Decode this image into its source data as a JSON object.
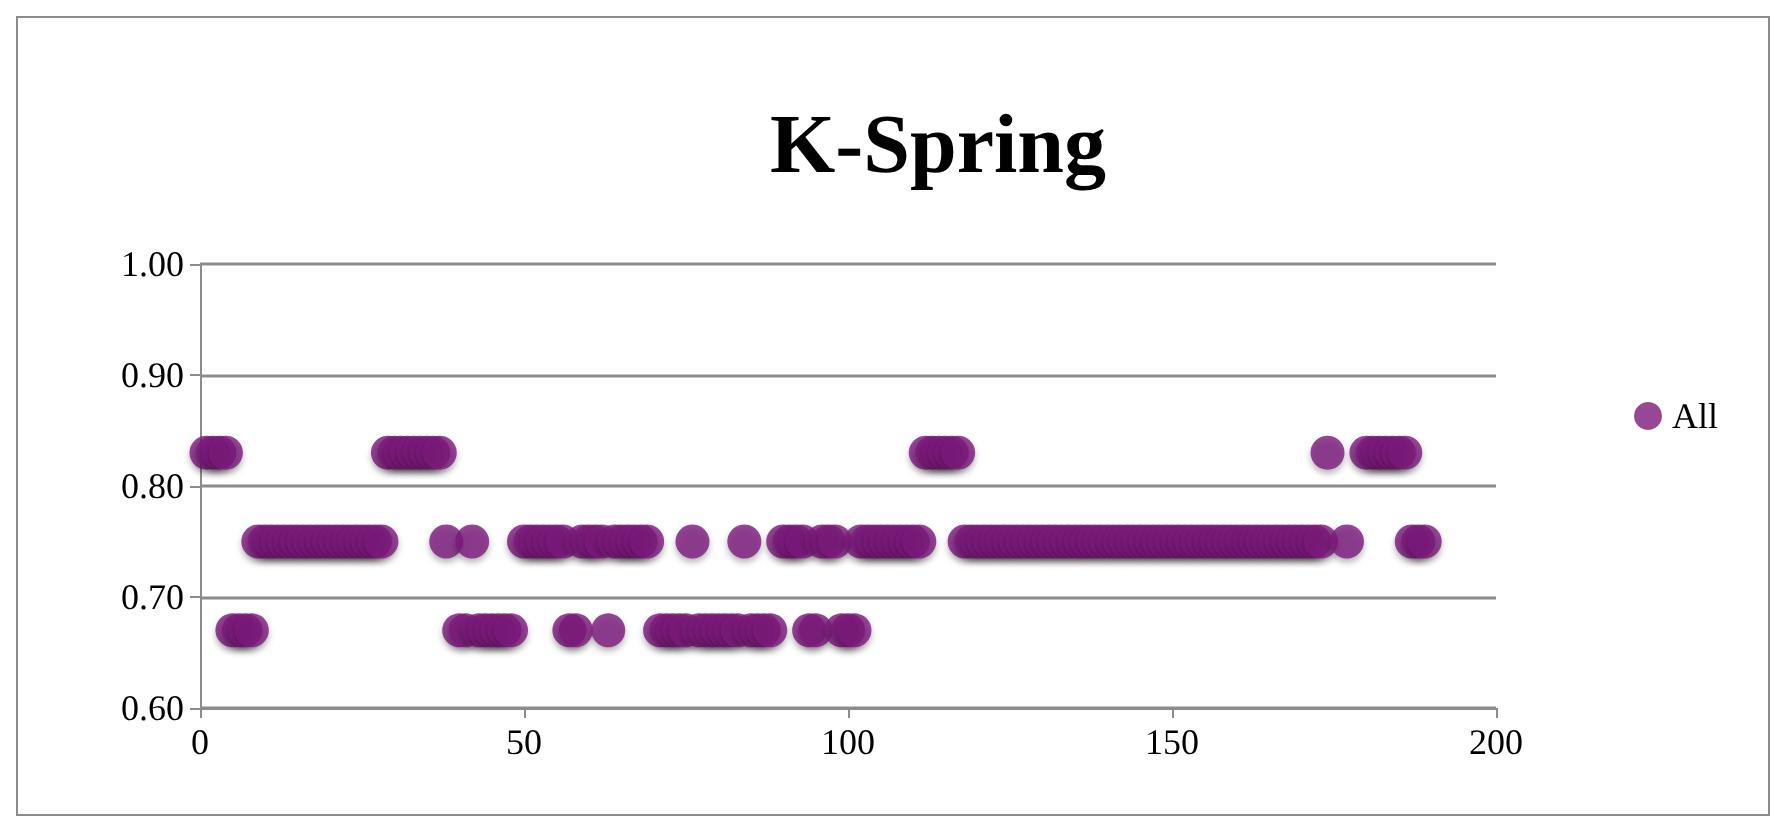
{
  "chart_data": {
    "type": "scatter",
    "title": "K-Spring",
    "x": [
      1,
      2,
      3,
      4,
      5,
      6,
      7,
      8,
      9,
      10,
      11,
      12,
      13,
      14,
      15,
      16,
      17,
      18,
      19,
      20,
      21,
      22,
      23,
      24,
      25,
      26,
      27,
      28,
      29,
      30,
      31,
      32,
      33,
      34,
      35,
      36,
      37,
      38,
      40,
      41,
      42,
      43,
      44,
      45,
      46,
      47,
      48,
      50,
      51,
      52,
      53,
      54,
      55,
      56,
      57,
      58,
      59,
      60,
      61,
      62,
      63,
      64,
      65,
      66,
      67,
      68,
      69,
      71,
      72,
      73,
      74,
      75,
      76,
      77,
      78,
      79,
      80,
      81,
      82,
      83,
      84,
      85,
      86,
      87,
      88,
      90,
      91,
      92,
      93,
      94,
      95,
      96,
      97,
      98,
      99,
      100,
      101,
      102,
      103,
      104,
      105,
      106,
      107,
      108,
      109,
      110,
      111,
      112,
      113,
      114,
      115,
      116,
      117,
      118,
      119,
      120,
      121,
      122,
      123,
      124,
      125,
      126,
      127,
      128,
      129,
      130,
      131,
      132,
      133,
      134,
      135,
      136,
      137,
      138,
      139,
      140,
      141,
      142,
      143,
      144,
      145,
      146,
      147,
      148,
      149,
      150,
      151,
      152,
      153,
      154,
      155,
      156,
      157,
      158,
      159,
      160,
      161,
      162,
      163,
      164,
      165,
      166,
      167,
      168,
      169,
      170,
      171,
      172,
      173,
      174,
      177,
      180,
      181,
      182,
      183,
      184,
      185,
      186,
      187,
      188,
      189
    ],
    "series": [
      {
        "name": "All",
        "color": "#7b1a7a",
        "values": [
          0.83,
          0.83,
          0.83,
          0.83,
          0.67,
          0.67,
          0.67,
          0.67,
          0.75,
          0.75,
          0.75,
          0.75,
          0.75,
          0.75,
          0.75,
          0.75,
          0.75,
          0.75,
          0.75,
          0.75,
          0.75,
          0.75,
          0.75,
          0.75,
          0.75,
          0.75,
          0.75,
          0.75,
          0.83,
          0.83,
          0.83,
          0.83,
          0.83,
          0.83,
          0.83,
          0.83,
          0.83,
          0.75,
          0.67,
          0.67,
          0.75,
          0.67,
          0.67,
          0.67,
          0.67,
          0.67,
          0.67,
          0.75,
          0.75,
          0.75,
          0.75,
          0.75,
          0.75,
          0.75,
          0.67,
          0.67,
          0.75,
          0.75,
          0.75,
          0.75,
          0.67,
          0.75,
          0.75,
          0.75,
          0.75,
          0.75,
          0.75,
          0.67,
          0.67,
          0.67,
          0.67,
          0.67,
          0.75,
          0.67,
          0.67,
          0.67,
          0.67,
          0.67,
          0.67,
          0.67,
          0.75,
          0.67,
          0.67,
          0.67,
          0.67,
          0.75,
          0.75,
          0.75,
          0.75,
          0.67,
          0.67,
          0.75,
          0.75,
          0.75,
          0.67,
          0.67,
          0.67,
          0.75,
          0.75,
          0.75,
          0.75,
          0.75,
          0.75,
          0.75,
          0.75,
          0.75,
          0.75,
          0.83,
          0.83,
          0.83,
          0.83,
          0.83,
          0.83,
          0.75,
          0.75,
          0.75,
          0.75,
          0.75,
          0.75,
          0.75,
          0.75,
          0.75,
          0.75,
          0.75,
          0.75,
          0.75,
          0.75,
          0.75,
          0.75,
          0.75,
          0.75,
          0.75,
          0.75,
          0.75,
          0.75,
          0.75,
          0.75,
          0.75,
          0.75,
          0.75,
          0.75,
          0.75,
          0.75,
          0.75,
          0.75,
          0.75,
          0.75,
          0.75,
          0.75,
          0.75,
          0.75,
          0.75,
          0.75,
          0.75,
          0.75,
          0.75,
          0.75,
          0.75,
          0.75,
          0.75,
          0.75,
          0.75,
          0.75,
          0.75,
          0.75,
          0.75,
          0.75,
          0.75,
          0.75,
          0.83,
          0.75,
          0.83,
          0.83,
          0.83,
          0.83,
          0.83,
          0.83,
          0.83,
          0.75,
          0.75,
          0.75
        ]
      }
    ],
    "xlim": [
      0,
      200
    ],
    "xticks": [
      0,
      50,
      100,
      150,
      200
    ],
    "ylim": [
      0.6,
      1.0
    ],
    "yticks": [
      {
        "value": 0.6,
        "label": "0.60"
      },
      {
        "value": 0.7,
        "label": "0.70"
      },
      {
        "value": 0.8,
        "label": "0.80"
      },
      {
        "value": 0.9,
        "label": "0.90"
      },
      {
        "value": 1.0,
        "label": "1.00"
      }
    ],
    "grid": "y",
    "legend": "right",
    "marker": "circle"
  }
}
